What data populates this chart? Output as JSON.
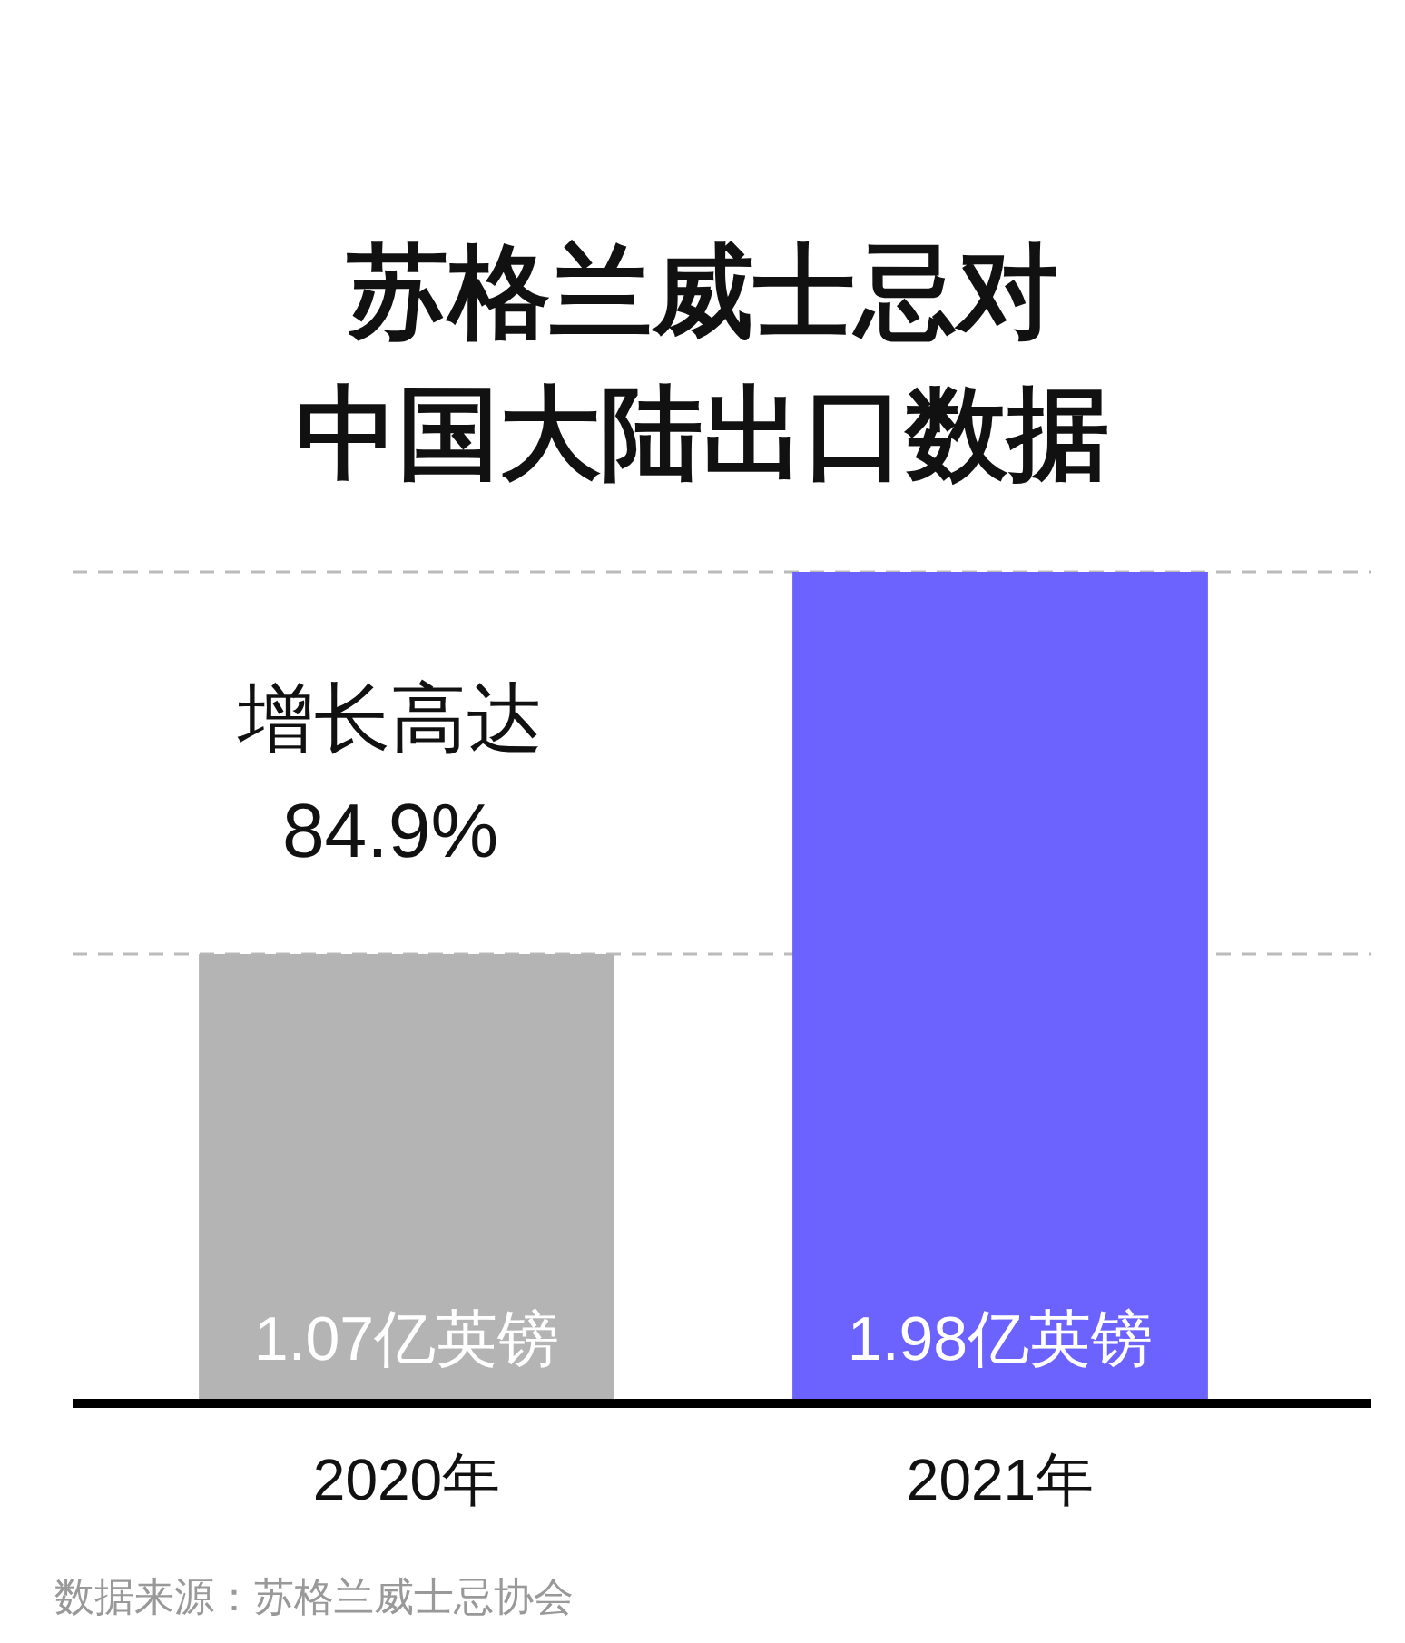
{
  "chart_data": {
    "type": "bar",
    "title": "苏格兰威士忌对中国大陆出口数据",
    "categories": [
      "2020年",
      "2021年"
    ],
    "values": [
      1.07,
      1.98
    ],
    "colors": [
      "#b4b4b4",
      "#6c63ff"
    ],
    "value_labels": [
      "1.07亿英镑",
      "1.98亿英镑"
    ],
    "ylim": [
      0,
      1.98
    ],
    "ref_lines": [
      {
        "axis": "y",
        "value": 1.07,
        "color": "#bbbbbb",
        "line_style": "dashed"
      },
      {
        "axis": "y",
        "value": 1.98,
        "color": "#bbbbbb",
        "line_style": "dashed"
      }
    ],
    "annotations": [
      "增长高达 84.9%",
      "数据来源：苏格兰威士忌协会"
    ]
  }
}
